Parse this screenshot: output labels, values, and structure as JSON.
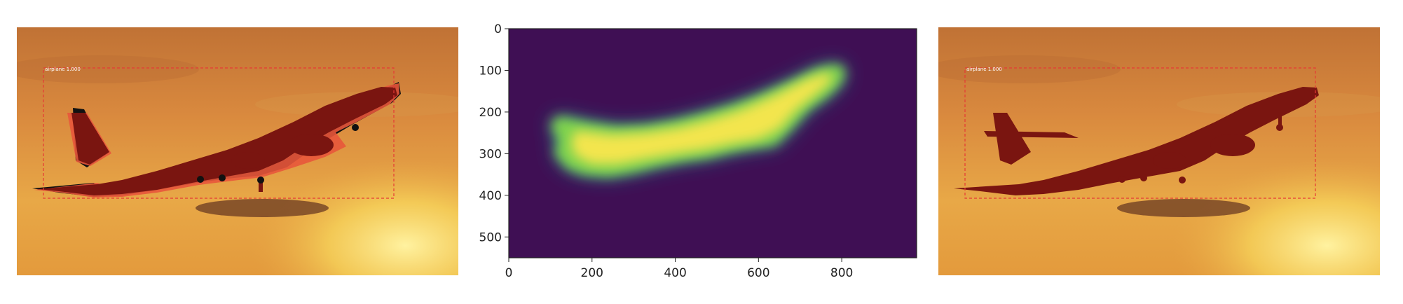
{
  "detections": [
    {
      "label": "airplane 1.000"
    },
    {
      "label": "airplane 1.000"
    }
  ],
  "mask_plot": {
    "x_ticks": [
      "0",
      "200",
      "400",
      "600",
      "800"
    ],
    "y_ticks": [
      "0",
      "100",
      "200",
      "300",
      "400",
      "500"
    ],
    "x_tick_values": [
      0,
      200,
      400,
      600,
      800
    ],
    "y_tick_values": [
      0,
      100,
      200,
      300,
      400,
      500
    ],
    "xlim": [
      0,
      980
    ],
    "ylim": [
      550,
      0
    ],
    "colormap": "viridis"
  },
  "colors": {
    "box_outline": "#e53935",
    "aircraft_fill": "#7a1510",
    "mask_overlay": "#e8573b",
    "sky_top": "#c77a3a",
    "sky_bottom": "#f3c447",
    "mask_background": "#3f0f54",
    "mask_highlight": "#f3e54d"
  }
}
